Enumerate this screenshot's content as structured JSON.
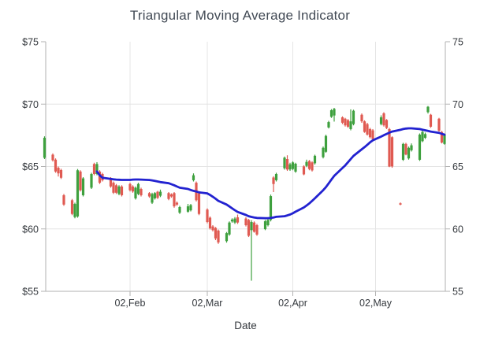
{
  "title": "Triangular Moving Average Indicator",
  "x_axis": {
    "title": "Date",
    "ticks": [
      {
        "date": "2015-02-02",
        "label": "02,Feb"
      },
      {
        "date": "2015-03-02",
        "label": "02,Mar"
      },
      {
        "date": "2015-04-02",
        "label": "02,Apr"
      },
      {
        "date": "2015-05-02",
        "label": "02,May"
      }
    ]
  },
  "y_axis": {
    "ticks": [
      {
        "value": 75,
        "left_label": "$75",
        "right_label": "75",
        "gridline": false
      },
      {
        "value": 70,
        "left_label": "$70",
        "right_label": "70",
        "gridline": true
      },
      {
        "value": 65,
        "left_label": "$65",
        "right_label": "65",
        "gridline": true
      },
      {
        "value": 60,
        "left_label": "$60",
        "right_label": "60",
        "gridline": true
      },
      {
        "value": 55,
        "left_label": "$55",
        "right_label": "55",
        "gridline": false
      }
    ]
  },
  "colors": {
    "bull": "#3ea03e",
    "bear": "#e05a52",
    "tma_line": "#2222d0",
    "grid": "#e4e4e4",
    "axis": "#b2b2b2",
    "label_text": "#35393e",
    "title_text": "#424a55"
  },
  "chart_data": {
    "type": "candlestick",
    "title": "Triangular Moving Average Indicator",
    "xlabel": "Date",
    "ylim": [
      55,
      75
    ],
    "y_ticks": [
      55,
      60,
      65,
      70,
      75
    ],
    "x_tick_labels": [
      "02,Feb",
      "02,Mar",
      "02,Apr",
      "02,May"
    ],
    "legend": "none",
    "point_format": [
      "date",
      "open",
      "high",
      "low",
      "close"
    ],
    "candles": [
      [
        "2015-01-02",
        65.7,
        67.42,
        65.6,
        67.3
      ],
      [
        "2015-01-05",
        65.95,
        66.05,
        65.4,
        65.5
      ],
      [
        "2015-01-06",
        65.55,
        65.65,
        64.5,
        64.6
      ],
      [
        "2015-01-07",
        64.9,
        65.0,
        64.2,
        64.45
      ],
      [
        "2015-01-08",
        64.72,
        64.82,
        64.0,
        64.1
      ],
      [
        "2015-01-09",
        62.7,
        62.8,
        61.85,
        61.95
      ],
      [
        "2015-01-12",
        62.3,
        62.4,
        61.1,
        61.2
      ],
      [
        "2015-01-13",
        60.95,
        62.1,
        60.85,
        62.0
      ],
      [
        "2015-01-14",
        61.0,
        64.8,
        60.9,
        64.7
      ],
      [
        "2015-01-15",
        64.6,
        64.7,
        63.0,
        63.1
      ],
      [
        "2015-01-16",
        62.7,
        64.15,
        62.6,
        64.05
      ],
      [
        "2015-01-19",
        63.3,
        64.5,
        63.2,
        64.4
      ],
      [
        "2015-01-20",
        65.2,
        65.3,
        64.3,
        64.4
      ],
      [
        "2015-01-21",
        64.4,
        65.35,
        64.3,
        65.2
      ],
      [
        "2015-01-22",
        64.6,
        64.7,
        63.6,
        63.7
      ],
      [
        "2015-01-23",
        64.4,
        64.5,
        63.8,
        63.9
      ],
      [
        "2015-01-26",
        64.05,
        64.15,
        63.3,
        63.4
      ],
      [
        "2015-01-27",
        63.7,
        63.8,
        62.8,
        62.9
      ],
      [
        "2015-01-28",
        63.5,
        63.6,
        62.8,
        62.9
      ],
      [
        "2015-01-29",
        62.8,
        63.5,
        62.7,
        63.4
      ],
      [
        "2015-01-30",
        63.4,
        63.5,
        62.6,
        62.7
      ],
      [
        "2015-02-02",
        63.6,
        63.7,
        63.0,
        63.1
      ],
      [
        "2015-02-03",
        63.4,
        63.5,
        62.9,
        63.0
      ],
      [
        "2015-02-04",
        62.45,
        63.4,
        62.35,
        63.3
      ],
      [
        "2015-02-05",
        62.8,
        63.7,
        62.7,
        63.6
      ],
      [
        "2015-02-06",
        63.2,
        63.3,
        62.6,
        62.7
      ],
      [
        "2015-02-09",
        62.87,
        62.95,
        62.5,
        62.6
      ],
      [
        "2015-02-10",
        62.1,
        62.9,
        62.0,
        62.8
      ],
      [
        "2015-02-11",
        62.45,
        62.95,
        62.35,
        62.87
      ],
      [
        "2015-02-12",
        62.98,
        63.05,
        62.4,
        62.49
      ],
      [
        "2015-02-13",
        62.66,
        63.15,
        62.55,
        62.98
      ],
      [
        "2015-02-16",
        62.87,
        62.95,
        62.3,
        62.4
      ],
      [
        "2015-02-17",
        62.77,
        62.85,
        62.5,
        62.6
      ],
      [
        "2015-02-18",
        62.87,
        62.95,
        61.7,
        61.81
      ],
      [
        "2015-02-19",
        62.1,
        62.2,
        61.85,
        61.95
      ],
      [
        "2015-02-20",
        61.3,
        61.85,
        61.2,
        61.75
      ],
      [
        "2015-02-23",
        61.38,
        62.0,
        61.3,
        61.81
      ],
      [
        "2015-02-24",
        61.49,
        62.0,
        61.4,
        61.91
      ],
      [
        "2015-02-25",
        63.9,
        64.45,
        63.8,
        64.3
      ],
      [
        "2015-02-26",
        63.7,
        63.8,
        62.2,
        62.3
      ],
      [
        "2015-02-27",
        62.85,
        62.95,
        61.1,
        61.2
      ],
      [
        "2015-03-02",
        61.55,
        61.65,
        60.45,
        60.55
      ],
      [
        "2015-03-03",
        60.9,
        61.0,
        59.95,
        60.05
      ],
      [
        "2015-03-04",
        60.2,
        60.3,
        59.8,
        59.9
      ],
      [
        "2015-03-05",
        60.08,
        60.15,
        59.1,
        59.24
      ],
      [
        "2015-03-06",
        59.87,
        59.95,
        58.8,
        58.92
      ],
      [
        "2015-03-09",
        59.02,
        59.75,
        58.9,
        59.66
      ],
      [
        "2015-03-10",
        59.55,
        60.6,
        59.45,
        60.51
      ],
      [
        "2015-03-11",
        60.6,
        60.85,
        60.5,
        60.75
      ],
      [
        "2015-03-12",
        60.51,
        60.95,
        60.4,
        60.83
      ],
      [
        "2015-03-13",
        60.93,
        61.15,
        60.4,
        60.51
      ],
      [
        "2015-03-16",
        60.83,
        60.93,
        60.2,
        60.3
      ],
      [
        "2015-03-17",
        60.72,
        60.8,
        59.35,
        59.45
      ],
      [
        "2015-03-18",
        59.9,
        60.7,
        55.85,
        60.55
      ],
      [
        "2015-03-19",
        60.51,
        60.6,
        59.7,
        59.77
      ],
      [
        "2015-03-20",
        60.3,
        60.4,
        59.45,
        59.55
      ],
      [
        "2015-03-23",
        59.98,
        60.72,
        59.9,
        60.62
      ],
      [
        "2015-03-24",
        60.3,
        60.85,
        60.2,
        60.72
      ],
      [
        "2015-03-25",
        60.72,
        62.75,
        60.6,
        62.63
      ],
      [
        "2015-03-26",
        64.12,
        64.22,
        62.95,
        63.6
      ],
      [
        "2015-03-27",
        63.9,
        64.5,
        63.8,
        64.4
      ],
      [
        "2015-03-30",
        64.86,
        65.8,
        64.75,
        65.71
      ],
      [
        "2015-03-31",
        65.6,
        65.9,
        64.65,
        64.76
      ],
      [
        "2015-04-01",
        64.76,
        65.3,
        64.65,
        65.18
      ],
      [
        "2015-04-02",
        64.8,
        65.42,
        64.7,
        65.33
      ],
      [
        "2015-04-03",
        64.59,
        65.3,
        64.5,
        65.22
      ],
      [
        "2015-04-06",
        65.01,
        65.1,
        64.3,
        64.37
      ],
      [
        "2015-04-07",
        65.05,
        65.55,
        64.95,
        65.37
      ],
      [
        "2015-04-08",
        65.44,
        65.52,
        64.7,
        64.8
      ],
      [
        "2015-04-09",
        65.33,
        65.42,
        64.6,
        64.69
      ],
      [
        "2015-04-10",
        65.26,
        65.95,
        65.15,
        65.86
      ],
      [
        "2015-04-13",
        65.75,
        66.6,
        65.65,
        66.5
      ],
      [
        "2015-04-14",
        66.18,
        67.55,
        66.1,
        67.45
      ],
      [
        "2015-04-15",
        68.13,
        68.66,
        68.05,
        68.56
      ],
      [
        "2015-04-16",
        68.98,
        69.6,
        68.9,
        69.51
      ],
      [
        "2015-04-17",
        69.09,
        69.7,
        68.6,
        69.62
      ],
      [
        "2015-04-20",
        68.94,
        69.02,
        68.4,
        68.51
      ],
      [
        "2015-04-21",
        68.83,
        68.9,
        68.2,
        68.3
      ],
      [
        "2015-04-22",
        68.72,
        68.8,
        68.1,
        68.19
      ],
      [
        "2015-04-23",
        68.0,
        69.58,
        67.9,
        68.62
      ],
      [
        "2015-04-24",
        68.4,
        69.55,
        68.3,
        69.47
      ],
      [
        "2015-04-27",
        69.15,
        69.25,
        68.5,
        68.62
      ],
      [
        "2015-04-28",
        68.62,
        68.7,
        67.7,
        67.77
      ],
      [
        "2015-04-29",
        68.4,
        68.5,
        67.48,
        67.56
      ],
      [
        "2015-04-30",
        68.0,
        68.1,
        67.25,
        67.35
      ],
      [
        "2015-05-01",
        67.9,
        68.0,
        67.1,
        67.2
      ],
      [
        "2015-05-04",
        68.4,
        69.1,
        68.3,
        68.94
      ],
      [
        "2015-05-05",
        69.26,
        69.35,
        68.2,
        68.3
      ],
      [
        "2015-05-06",
        68.73,
        68.8,
        68.0,
        68.09
      ],
      [
        "2015-05-07",
        68.0,
        68.1,
        64.95,
        65.0
      ],
      [
        "2015-05-08",
        67.35,
        67.42,
        64.9,
        65.01
      ],
      [
        "2015-05-11",
        62.05,
        62.12,
        61.9,
        61.95
      ],
      [
        "2015-05-12",
        65.54,
        66.9,
        65.45,
        66.81
      ],
      [
        "2015-05-13",
        66.81,
        66.9,
        65.9,
        65.96
      ],
      [
        "2015-05-14",
        65.65,
        66.6,
        65.55,
        66.5
      ],
      [
        "2015-05-15",
        66.3,
        66.85,
        66.2,
        66.7
      ],
      [
        "2015-05-18",
        65.54,
        67.65,
        65.45,
        67.56
      ],
      [
        "2015-05-19",
        67.03,
        68.0,
        66.95,
        67.77
      ],
      [
        "2015-05-20",
        67.3,
        67.72,
        67.2,
        67.6
      ],
      [
        "2015-05-21",
        69.36,
        69.85,
        69.25,
        69.79
      ],
      [
        "2015-05-22",
        69.15,
        69.22,
        68.1,
        68.19
      ],
      [
        "2015-05-25",
        68.83,
        68.9,
        67.8,
        67.87
      ],
      [
        "2015-05-26",
        67.77,
        67.85,
        66.85,
        66.92
      ],
      [
        "2015-05-27",
        66.81,
        67.65,
        66.75,
        67.56
      ]
    ],
    "indicator": {
      "name": "Triangular Moving Average",
      "points": [
        [
          "2015-01-21",
          64.6
        ],
        [
          "2015-01-22",
          64.3
        ],
        [
          "2015-01-23",
          64.1
        ],
        [
          "2015-01-26",
          64.0
        ],
        [
          "2015-01-27",
          63.97
        ],
        [
          "2015-01-28",
          63.95
        ],
        [
          "2015-01-29",
          63.94
        ],
        [
          "2015-01-30",
          63.93
        ],
        [
          "2015-02-02",
          63.93
        ],
        [
          "2015-02-03",
          63.95
        ],
        [
          "2015-02-04",
          63.96
        ],
        [
          "2015-02-05",
          63.96
        ],
        [
          "2015-02-06",
          63.95
        ],
        [
          "2015-02-09",
          63.92
        ],
        [
          "2015-02-10",
          63.89
        ],
        [
          "2015-02-11",
          63.85
        ],
        [
          "2015-02-12",
          63.8
        ],
        [
          "2015-02-13",
          63.75
        ],
        [
          "2015-02-16",
          63.66
        ],
        [
          "2015-02-17",
          63.58
        ],
        [
          "2015-02-18",
          63.5
        ],
        [
          "2015-02-19",
          63.4
        ],
        [
          "2015-02-20",
          63.3
        ],
        [
          "2015-02-23",
          63.2
        ],
        [
          "2015-02-24",
          63.12
        ],
        [
          "2015-02-25",
          63.05
        ],
        [
          "2015-02-26",
          63.0
        ],
        [
          "2015-02-27",
          62.93
        ],
        [
          "2015-03-02",
          62.85
        ],
        [
          "2015-03-03",
          62.72
        ],
        [
          "2015-03-04",
          62.58
        ],
        [
          "2015-03-05",
          62.42
        ],
        [
          "2015-03-06",
          62.25
        ],
        [
          "2015-03-09",
          61.95
        ],
        [
          "2015-03-10",
          61.8
        ],
        [
          "2015-03-11",
          61.65
        ],
        [
          "2015-03-12",
          61.5
        ],
        [
          "2015-03-13",
          61.36
        ],
        [
          "2015-03-16",
          61.12
        ],
        [
          "2015-03-17",
          61.02
        ],
        [
          "2015-03-18",
          60.96
        ],
        [
          "2015-03-19",
          60.92
        ],
        [
          "2015-03-20",
          60.88
        ],
        [
          "2015-03-23",
          60.86
        ],
        [
          "2015-03-24",
          60.86
        ],
        [
          "2015-03-25",
          60.88
        ],
        [
          "2015-03-26",
          60.92
        ],
        [
          "2015-03-27",
          60.97
        ],
        [
          "2015-03-30",
          61.02
        ],
        [
          "2015-03-31",
          61.08
        ],
        [
          "2015-04-01",
          61.15
        ],
        [
          "2015-04-02",
          61.25
        ],
        [
          "2015-04-03",
          61.38
        ],
        [
          "2015-04-06",
          61.72
        ],
        [
          "2015-04-07",
          61.88
        ],
        [
          "2015-04-08",
          62.05
        ],
        [
          "2015-04-09",
          62.25
        ],
        [
          "2015-04-10",
          62.45
        ],
        [
          "2015-04-13",
          63.1
        ],
        [
          "2015-04-14",
          63.35
        ],
        [
          "2015-04-15",
          63.65
        ],
        [
          "2015-04-16",
          63.95
        ],
        [
          "2015-04-17",
          64.25
        ],
        [
          "2015-04-20",
          64.88
        ],
        [
          "2015-04-21",
          65.09
        ],
        [
          "2015-04-22",
          65.34
        ],
        [
          "2015-04-23",
          65.6
        ],
        [
          "2015-04-24",
          65.85
        ],
        [
          "2015-04-27",
          66.38
        ],
        [
          "2015-04-28",
          66.55
        ],
        [
          "2015-04-29",
          66.74
        ],
        [
          "2015-04-30",
          66.94
        ],
        [
          "2015-05-01",
          67.1
        ],
        [
          "2015-05-04",
          67.4
        ],
        [
          "2015-05-05",
          67.51
        ],
        [
          "2015-05-06",
          67.61
        ],
        [
          "2015-05-07",
          67.71
        ],
        [
          "2015-05-08",
          67.8
        ],
        [
          "2015-05-11",
          67.94
        ],
        [
          "2015-05-12",
          68.0
        ],
        [
          "2015-05-13",
          68.04
        ],
        [
          "2015-05-14",
          68.06
        ],
        [
          "2015-05-15",
          68.06
        ],
        [
          "2015-05-18",
          68.0
        ],
        [
          "2015-05-19",
          67.95
        ],
        [
          "2015-05-20",
          67.9
        ],
        [
          "2015-05-21",
          67.85
        ],
        [
          "2015-05-22",
          67.8
        ],
        [
          "2015-05-25",
          67.7
        ],
        [
          "2015-05-26",
          67.62
        ],
        [
          "2015-05-27",
          67.55
        ]
      ]
    }
  }
}
